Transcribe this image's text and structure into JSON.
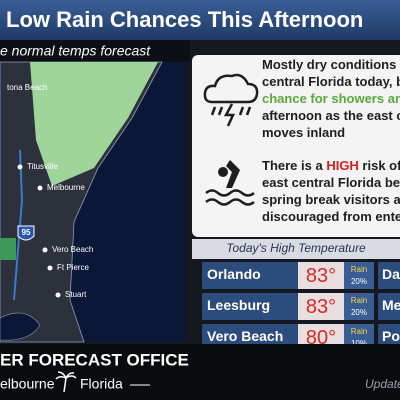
{
  "header": {
    "title": "Low Rain Chances This Afternoon",
    "subtitle": "e normal temps forecast"
  },
  "map": {
    "labels": [
      "tona Beach",
      "Titusville",
      "Melbourne",
      "Vero Beach",
      "Ft Pierce",
      "Stuart"
    ],
    "shield": "95"
  },
  "messages": [
    {
      "lines": [
        [
          {
            "text": "Mostly dry conditions f",
            "color": "#1e1e1e"
          }
        ],
        [
          {
            "text": "central Florida today, b",
            "color": "#1e1e1e"
          }
        ],
        [
          {
            "text": "chance for showers an",
            "color": "#5aa83c"
          }
        ],
        [
          {
            "text": "afternoon as the east c",
            "color": "#1e1e1e"
          }
        ],
        [
          {
            "text": "moves inland",
            "color": "#1e1e1e"
          }
        ]
      ]
    },
    {
      "lines": [
        [
          {
            "text": "There is a ",
            "color": "#1e1e1e"
          },
          {
            "text": "HIGH",
            "color": "#d81e1e"
          },
          {
            "text": " risk of",
            "color": "#1e1e1e"
          }
        ],
        [
          {
            "text": "east central Florida bea",
            "color": "#1e1e1e"
          }
        ],
        [
          {
            "text": "spring break visitors ar",
            "color": "#1e1e1e"
          }
        ],
        [
          {
            "text": "discouraged from ente",
            "color": "#1e1e1e"
          }
        ]
      ]
    }
  ],
  "forecast": {
    "heading": "Today's High Temperature",
    "rows": [
      {
        "city": "Orlando",
        "temp": "83°",
        "rain_label": "Rain",
        "rain": "20%"
      },
      {
        "city": "Leesburg",
        "temp": "83°",
        "rain_label": "Rain",
        "rain": "20%"
      },
      {
        "city": "Vero Beach",
        "temp": "80°",
        "rain_label": "Rain",
        "rain": "10%"
      }
    ],
    "second_column": [
      "Day",
      "Me",
      "Por"
    ]
  },
  "footer": {
    "office": "ER FORECAST OFFICE",
    "city": "elbourne",
    "state": "Florida",
    "update": "Update"
  }
}
